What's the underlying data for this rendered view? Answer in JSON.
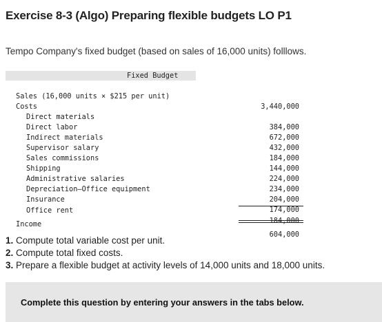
{
  "title": "Exercise 8-3 (Algo) Preparing flexible budgets LO P1",
  "intro": "Tempo Company's fixed budget (based on sales of 16,000 units) folllows.",
  "budget": {
    "heading": "Fixed Budget",
    "sales_label": "Sales (16,000 units × $215 per unit)",
    "sales_amount": "3,440,000",
    "costs_label": "Costs",
    "costs": [
      {
        "label": "Direct materials",
        "amount": "384,000"
      },
      {
        "label": "Direct labor",
        "amount": "672,000"
      },
      {
        "label": "Indirect materials",
        "amount": "432,000"
      },
      {
        "label": "Supervisor salary",
        "amount": "184,000"
      },
      {
        "label": "Sales commissions",
        "amount": "144,000"
      },
      {
        "label": "Shipping",
        "amount": "224,000"
      },
      {
        "label": "Administrative salaries",
        "amount": "234,000"
      },
      {
        "label": "Depreciation—Office equipment",
        "amount": "204,000"
      },
      {
        "label": "Insurance",
        "amount": "174,000"
      },
      {
        "label": "Office rent",
        "amount": "184,000"
      }
    ],
    "income_label": "Income",
    "income_amount": "604,000"
  },
  "questions": [
    {
      "number": "1.",
      "text": "Compute total variable cost per unit."
    },
    {
      "number": "2.",
      "text": "Compute total fixed costs."
    },
    {
      "number": "3.",
      "text": "Prepare a flexible budget at activity levels of 14,000 units and 18,000 units."
    }
  ],
  "complete_notice": "Complete this question by entering your answers in the tabs below."
}
